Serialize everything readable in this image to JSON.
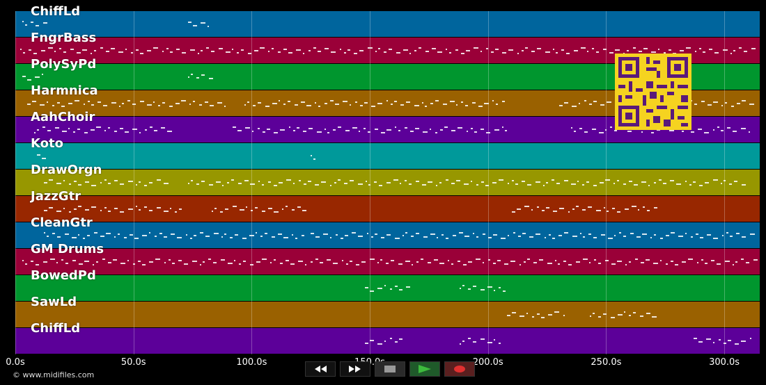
{
  "tracks": [
    {
      "name": "ChiffLd",
      "color": "#00659d"
    },
    {
      "name": "FngrBass",
      "color": "#9a0038"
    },
    {
      "name": "PolySyPd",
      "color": "#00962e"
    },
    {
      "name": "Harmnica",
      "color": "#9a6100"
    },
    {
      "name": "AahChoir",
      "color": "#5c0099"
    },
    {
      "name": "Koto",
      "color": "#00999a"
    },
    {
      "name": "DrawOrgn",
      "color": "#979700"
    },
    {
      "name": "JazzGtr",
      "color": "#982700"
    },
    {
      "name": "CleanGtr",
      "color": "#00659d"
    },
    {
      "name": "GM Drums",
      "color": "#9a0038"
    },
    {
      "name": "BowedPd",
      "color": "#00962e"
    },
    {
      "name": "SawLd",
      "color": "#9a6100"
    },
    {
      "name": "ChiffLd",
      "color": "#5c0099"
    }
  ],
  "axis": {
    "max_seconds": 315,
    "ticks": [
      "0.0s",
      "50.0s",
      "100.0s",
      "150.0s",
      "200.0s",
      "250.0s",
      "300.0s"
    ],
    "tick_values": [
      0,
      50,
      100,
      150,
      200,
      250,
      300
    ]
  },
  "copyright": "© www.midifiles.com",
  "transport": {
    "rewind_icon": "rewind-icon",
    "forward_icon": "fast-forward-icon",
    "stop_icon": "stop-icon",
    "play_icon": "play-icon",
    "record_icon": "record-icon"
  },
  "note_segments": [
    {
      "track": 0,
      "from": 3,
      "to": 13
    },
    {
      "track": 0,
      "from": 73,
      "to": 82
    },
    {
      "track": 1,
      "from": 2,
      "to": 314
    },
    {
      "track": 2,
      "from": 3,
      "to": 13
    },
    {
      "track": 2,
      "from": 73,
      "to": 83
    },
    {
      "track": 3,
      "from": 5,
      "to": 90
    },
    {
      "track": 3,
      "from": 97,
      "to": 207
    },
    {
      "track": 3,
      "from": 230,
      "to": 312
    },
    {
      "track": 4,
      "from": 8,
      "to": 66
    },
    {
      "track": 4,
      "from": 92,
      "to": 208
    },
    {
      "track": 4,
      "from": 235,
      "to": 311
    },
    {
      "track": 5,
      "from": 9,
      "to": 13
    },
    {
      "track": 5,
      "from": 125,
      "to": 128
    },
    {
      "track": 6,
      "from": 12,
      "to": 63
    },
    {
      "track": 6,
      "from": 73,
      "to": 310
    },
    {
      "track": 7,
      "from": 12,
      "to": 72
    },
    {
      "track": 7,
      "from": 83,
      "to": 122
    },
    {
      "track": 7,
      "from": 210,
      "to": 271
    },
    {
      "track": 8,
      "from": 12,
      "to": 122
    },
    {
      "track": 8,
      "from": 125,
      "to": 313
    },
    {
      "track": 9,
      "from": 3,
      "to": 313
    },
    {
      "track": 10,
      "from": 148,
      "to": 167
    },
    {
      "track": 10,
      "from": 188,
      "to": 207
    },
    {
      "track": 11,
      "from": 208,
      "to": 232
    },
    {
      "track": 11,
      "from": 243,
      "to": 271
    },
    {
      "track": 12,
      "from": 148,
      "to": 165
    },
    {
      "track": 12,
      "from": 188,
      "to": 205
    },
    {
      "track": 12,
      "from": 287,
      "to": 311
    }
  ]
}
